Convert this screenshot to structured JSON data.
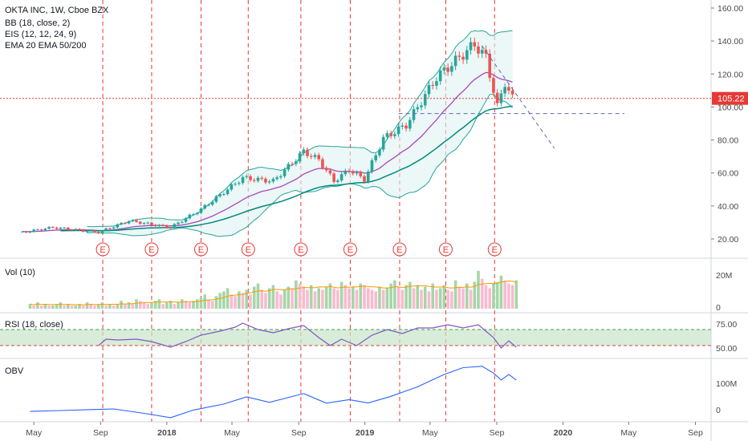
{
  "header": {
    "title": "OKTA INC, 1W, Cboe BZX",
    "indicators": [
      "BB (18, close, 2)",
      "EIS (12, 12, 24, 9)",
      "EMA 20 EMA 50/200"
    ]
  },
  "price_axis": {
    "ticks": [
      "160.00",
      "140.00",
      "120.00",
      "100.00",
      "80.00",
      "60.00",
      "40.00",
      "20.00"
    ],
    "last_price": "105.22"
  },
  "vol_pane": {
    "label": "Vol (10)",
    "ticks": [
      "20M",
      "0"
    ]
  },
  "rsi_pane": {
    "label": "RSI (18, close)",
    "ticks": [
      "75.00",
      "50.00"
    ]
  },
  "obv_pane": {
    "label": "OBV",
    "ticks": [
      "100M",
      "0"
    ]
  },
  "time_axis": {
    "labels": [
      "May",
      "Sep",
      "2018",
      "May",
      "Sep",
      "2019",
      "May",
      "Sep",
      "2020",
      "May",
      "Sep"
    ]
  },
  "earnings_marker": "E",
  "colors": {
    "up": "#26a69a",
    "down": "#ef5350",
    "earn": "#e53935",
    "bb": "#26a69a",
    "ema20": "#ab47bc",
    "ema50": "#00897b",
    "rsi": "#7e57c2",
    "obv": "#2962ff",
    "rsi_band": "#c8e6c9",
    "last": "#e53935"
  },
  "chart_data": {
    "type": "candlestick",
    "interval": "1W",
    "x_range": [
      "2017-04-10",
      "2020-09-21"
    ],
    "price_ylim": [
      10,
      165
    ],
    "segments": [
      [
        "2017-04-10",
        24
      ],
      [
        "2017-06-05",
        27
      ],
      [
        "2017-08-28",
        24
      ],
      [
        "2017-10-23",
        31
      ],
      [
        "2018-01-08",
        27
      ],
      [
        "2018-03-05",
        38
      ],
      [
        "2018-05-21",
        57
      ],
      [
        "2018-07-16",
        55
      ],
      [
        "2018-09-10",
        73
      ],
      [
        "2018-10-08",
        68
      ],
      [
        "2018-11-05",
        55
      ],
      [
        "2018-12-03",
        62
      ],
      [
        "2018-12-31",
        56
      ],
      [
        "2019-02-04",
        81
      ],
      [
        "2019-03-18",
        89
      ],
      [
        "2019-05-13",
        118
      ],
      [
        "2019-06-24",
        130
      ],
      [
        "2019-07-22",
        138
      ],
      [
        "2019-08-12",
        130
      ],
      [
        "2019-09-02",
        100
      ],
      [
        "2019-09-16",
        115
      ],
      [
        "2019-09-30",
        105
      ]
    ],
    "earnings_dates": [
      "2017-09-05",
      "2017-12-04",
      "2018-03-05",
      "2018-05-31",
      "2018-09-05",
      "2018-12-05",
      "2019-03-06",
      "2019-05-30",
      "2019-08-28"
    ],
    "last_price": 105.22,
    "support_level": 96,
    "trendline": [
      [
        "2019-08-05",
        137
      ],
      [
        "2019-12-16",
        75
      ]
    ],
    "rsi_ylim": [
      35,
      90
    ],
    "rsi_band": [
      50,
      70
    ],
    "rsi_points": [
      [
        "2017-08-28",
        50
      ],
      [
        "2017-09-11",
        58
      ],
      [
        "2017-10-02",
        57
      ],
      [
        "2017-11-06",
        58
      ],
      [
        "2017-12-04",
        55
      ],
      [
        "2018-01-08",
        48
      ],
      [
        "2018-02-05",
        55
      ],
      [
        "2018-03-05",
        63
      ],
      [
        "2018-04-09",
        68
      ],
      [
        "2018-05-07",
        73
      ],
      [
        "2018-05-21",
        78
      ],
      [
        "2018-06-18",
        70
      ],
      [
        "2018-07-16",
        66
      ],
      [
        "2018-08-13",
        71
      ],
      [
        "2018-09-10",
        75
      ],
      [
        "2018-10-08",
        60
      ],
      [
        "2018-10-29",
        50
      ],
      [
        "2018-11-19",
        58
      ],
      [
        "2018-12-17",
        50
      ],
      [
        "2019-01-14",
        63
      ],
      [
        "2019-02-11",
        70
      ],
      [
        "2019-03-11",
        65
      ],
      [
        "2019-04-08",
        72
      ],
      [
        "2019-05-06",
        72
      ],
      [
        "2019-06-03",
        76
      ],
      [
        "2019-07-01",
        72
      ],
      [
        "2019-07-29",
        76
      ],
      [
        "2019-08-26",
        60
      ],
      [
        "2019-09-09",
        47
      ],
      [
        "2019-09-23",
        56
      ],
      [
        "2019-10-07",
        48
      ]
    ],
    "obv_ylim": [
      -30,
      190
    ],
    "obv_points": [
      [
        "2017-04-24",
        5
      ],
      [
        "2017-06-19",
        8
      ],
      [
        "2017-08-21",
        12
      ],
      [
        "2017-09-25",
        14
      ],
      [
        "2017-11-20",
        -2
      ],
      [
        "2018-01-08",
        -18
      ],
      [
        "2018-02-19",
        10
      ],
      [
        "2018-04-16",
        32
      ],
      [
        "2018-05-28",
        58
      ],
      [
        "2018-07-09",
        38
      ],
      [
        "2018-09-10",
        70
      ],
      [
        "2018-10-22",
        35
      ],
      [
        "2018-12-03",
        48
      ],
      [
        "2019-01-07",
        36
      ],
      [
        "2019-02-18",
        60
      ],
      [
        "2019-04-08",
        95
      ],
      [
        "2019-05-27",
        140
      ],
      [
        "2019-07-01",
        165
      ],
      [
        "2019-08-05",
        170
      ],
      [
        "2019-08-26",
        145
      ],
      [
        "2019-09-09",
        120
      ],
      [
        "2019-09-23",
        140
      ],
      [
        "2019-10-07",
        120
      ]
    ],
    "vol_ylim": [
      0,
      28
    ],
    "vol_values": [
      3,
      2,
      4,
      2,
      3,
      2,
      2,
      3,
      4,
      2,
      3,
      2,
      2,
      3,
      2,
      4,
      3,
      2,
      3,
      4,
      2,
      3,
      2,
      3,
      5,
      3,
      4,
      3,
      6,
      5,
      4,
      3,
      4,
      5,
      6,
      3,
      4,
      5,
      3,
      4,
      6,
      5,
      4,
      5,
      6,
      7,
      9,
      6,
      5,
      8,
      10,
      11,
      13,
      9,
      8,
      11,
      10,
      12,
      9,
      14,
      16,
      12,
      10,
      13,
      15,
      11,
      9,
      12,
      14,
      13,
      18,
      16,
      14,
      12,
      15,
      11,
      13,
      12,
      14,
      16,
      13,
      12,
      17,
      15,
      13,
      14,
      12,
      16,
      15,
      13,
      12,
      11,
      14,
      12,
      13,
      16,
      18,
      14,
      12,
      15,
      17,
      13,
      15,
      12,
      14,
      11,
      16,
      12,
      13,
      15,
      12,
      11,
      18,
      14,
      13,
      16,
      12,
      17,
      24,
      19,
      15,
      13,
      16,
      17,
      21,
      18,
      16,
      15,
      18
    ],
    "x_ticks": [
      [
        "2017-05-01",
        "May"
      ],
      [
        "2017-09-01",
        "Sep"
      ],
      [
        "2018-01-01",
        "2018"
      ],
      [
        "2018-05-01",
        "May"
      ],
      [
        "2018-09-01",
        "Sep"
      ],
      [
        "2019-01-01",
        "2019"
      ],
      [
        "2019-05-01",
        "May"
      ],
      [
        "2019-09-01",
        "Sep"
      ],
      [
        "2020-01-01",
        "2020"
      ],
      [
        "2020-05-01",
        "May"
      ],
      [
        "2020-09-01",
        "Sep"
      ]
    ]
  }
}
